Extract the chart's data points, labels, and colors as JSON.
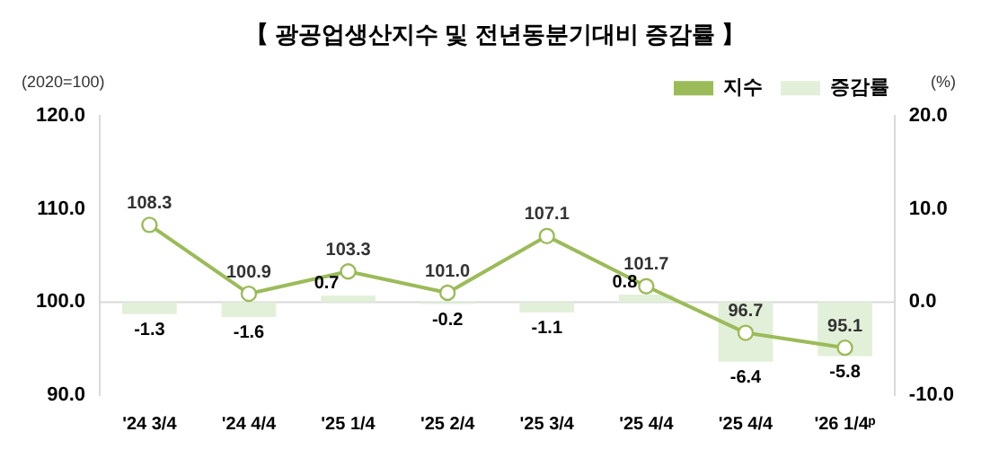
{
  "chart_data": {
    "type": "bar",
    "title": "【 광공업생산지수 및 전년동분기대비 증감률 】",
    "ylabel": "(2020=100)",
    "y2label": "(%)",
    "categories": [
      "'24 3/4",
      "'24 4/4",
      "'25 1/4",
      "'25 2/4",
      "'25 3/4",
      "'25 4/4",
      "'25 4/4",
      "'26 1/4ᵖ"
    ],
    "series": [
      {
        "name": "지수",
        "type": "line",
        "color": "#9bbb59",
        "values": [
          108.3,
          100.9,
          103.3,
          101.0,
          107.1,
          101.7,
          96.7,
          95.1
        ],
        "value_labels": [
          "108.3",
          "100.9",
          "103.3",
          "101.0",
          "107.1",
          "101.7",
          "96.7",
          "95.1"
        ],
        "marker": "circle"
      },
      {
        "name": "증감률",
        "axis": "y2",
        "color": "#e2f0d9",
        "values": [
          -1.3,
          -1.6,
          0.7,
          -0.2,
          -1.1,
          0.8,
          -6.4,
          -5.8
        ],
        "value_labels": [
          "-1.3",
          "-1.6",
          "0.7",
          "-0.2",
          "-1.1",
          "0.8",
          "-6.4",
          "-5.8"
        ]
      }
    ],
    "ylim": [
      90,
      120
    ],
    "yticks": [
      {
        "value": 90,
        "label": "90.0"
      },
      {
        "value": 100,
        "label": "100.0"
      },
      {
        "value": 110,
        "label": "110.0"
      },
      {
        "value": 120,
        "label": "120.0"
      }
    ],
    "y2lim": [
      -10,
      20
    ],
    "y2ticks": [
      {
        "value": -10,
        "label": "-10.0"
      },
      {
        "value": 0,
        "label": "0.0"
      },
      {
        "value": 10,
        "label": "10.0"
      },
      {
        "value": 20,
        "label": "20.0"
      }
    ],
    "ref_lines": [
      {
        "axis": "y2",
        "value": 0,
        "color": "#d9d9d9"
      }
    ],
    "legend": "top right",
    "grid": false
  }
}
